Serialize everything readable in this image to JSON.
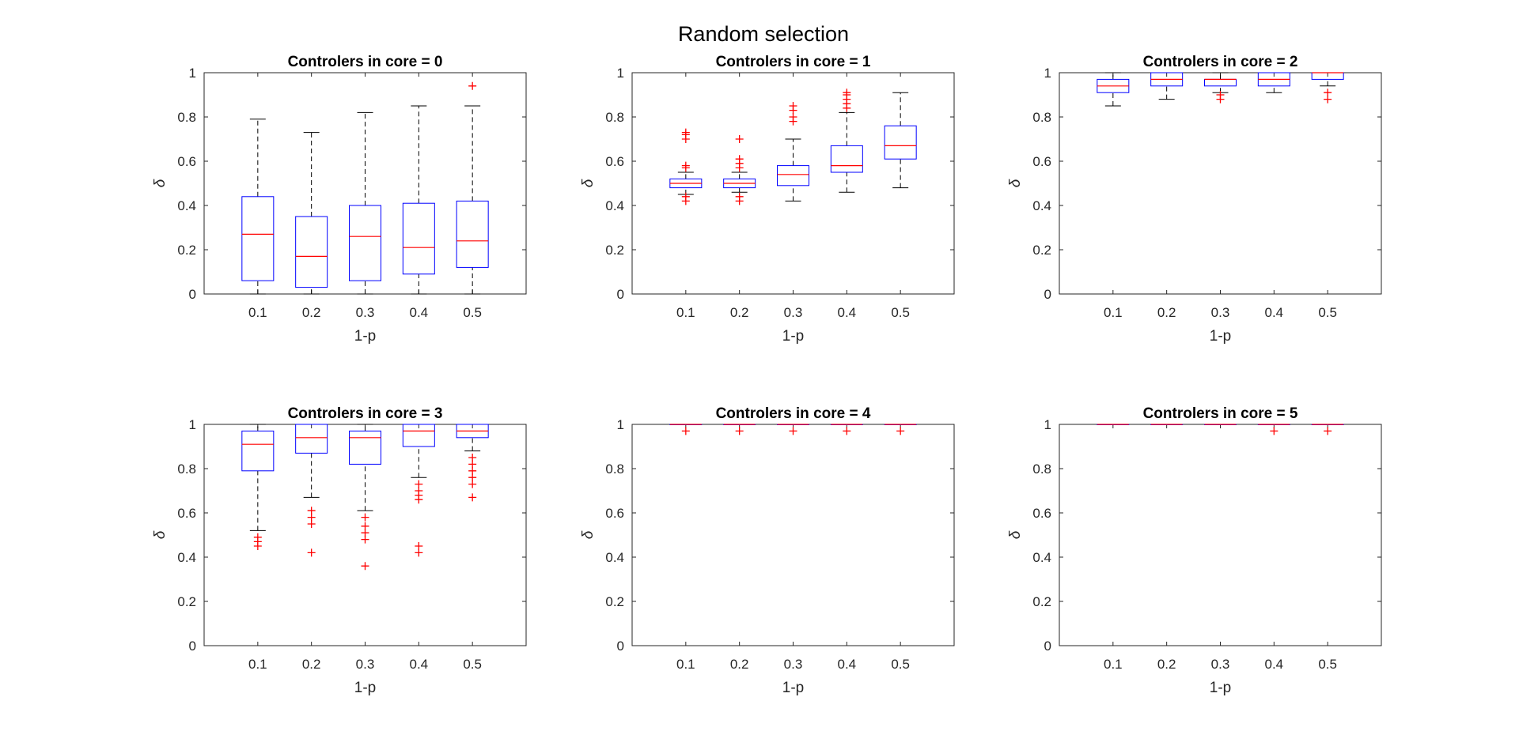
{
  "figure_title": "Random selection",
  "colors": {
    "box": "#0000ff",
    "median": "#ff0000",
    "whisker": "#000000",
    "outlier": "#ff0000",
    "axes": "#262626"
  },
  "chart_data": [
    {
      "type": "box",
      "title": "Controlers in core = 0",
      "xlabel": "1-p",
      "ylabel": "δ",
      "categories": [
        "0.1",
        "0.2",
        "0.3",
        "0.4",
        "0.5"
      ],
      "ylim": [
        0,
        1
      ],
      "yticks": [
        "0",
        "0.2",
        "0.4",
        "0.6",
        "0.8",
        "1"
      ],
      "boxes": [
        {
          "q1": 0.06,
          "median": 0.27,
          "q3": 0.44,
          "lw": 0.0,
          "uw": 0.79,
          "outliers": []
        },
        {
          "q1": 0.03,
          "median": 0.17,
          "q3": 0.35,
          "lw": 0.0,
          "uw": 0.73,
          "outliers": []
        },
        {
          "q1": 0.06,
          "median": 0.26,
          "q3": 0.4,
          "lw": 0.0,
          "uw": 0.82,
          "outliers": []
        },
        {
          "q1": 0.09,
          "median": 0.21,
          "q3": 0.41,
          "lw": 0.0,
          "uw": 0.85,
          "outliers": []
        },
        {
          "q1": 0.12,
          "median": 0.24,
          "q3": 0.42,
          "lw": 0.0,
          "uw": 0.85,
          "outliers": [
            0.94
          ]
        }
      ]
    },
    {
      "type": "box",
      "title": "Controlers in core = 1",
      "xlabel": "1-p",
      "ylabel": "δ",
      "categories": [
        "0.1",
        "0.2",
        "0.3",
        "0.4",
        "0.5"
      ],
      "ylim": [
        0,
        1
      ],
      "yticks": [
        "0",
        "0.2",
        "0.4",
        "0.6",
        "0.8",
        "1"
      ],
      "boxes": [
        {
          "q1": 0.48,
          "median": 0.5,
          "q3": 0.52,
          "lw": 0.45,
          "uw": 0.55,
          "outliers": [
            0.42,
            0.44,
            0.57,
            0.58,
            0.7,
            0.72,
            0.73
          ]
        },
        {
          "q1": 0.48,
          "median": 0.5,
          "q3": 0.52,
          "lw": 0.46,
          "uw": 0.55,
          "outliers": [
            0.42,
            0.44,
            0.57,
            0.59,
            0.61,
            0.7
          ]
        },
        {
          "q1": 0.49,
          "median": 0.54,
          "q3": 0.58,
          "lw": 0.42,
          "uw": 0.7,
          "outliers": [
            0.78,
            0.8,
            0.83,
            0.85
          ]
        },
        {
          "q1": 0.55,
          "median": 0.58,
          "q3": 0.67,
          "lw": 0.46,
          "uw": 0.82,
          "outliers": [
            0.84,
            0.86,
            0.88,
            0.9,
            0.91
          ]
        },
        {
          "q1": 0.61,
          "median": 0.67,
          "q3": 0.76,
          "lw": 0.48,
          "uw": 0.91,
          "outliers": []
        }
      ]
    },
    {
      "type": "box",
      "title": "Controlers in core = 2",
      "xlabel": "1-p",
      "ylabel": "δ",
      "categories": [
        "0.1",
        "0.2",
        "0.3",
        "0.4",
        "0.5"
      ],
      "ylim": [
        0,
        1
      ],
      "yticks": [
        "0",
        "0.2",
        "0.4",
        "0.6",
        "0.8",
        "1"
      ],
      "boxes": [
        {
          "q1": 0.91,
          "median": 0.94,
          "q3": 0.97,
          "lw": 0.85,
          "uw": 1.0,
          "outliers": []
        },
        {
          "q1": 0.94,
          "median": 0.97,
          "q3": 1.0,
          "lw": 0.88,
          "uw": 1.0,
          "outliers": []
        },
        {
          "q1": 0.94,
          "median": 0.97,
          "q3": 0.97,
          "lw": 0.91,
          "uw": 1.0,
          "outliers": [
            0.88,
            0.9
          ]
        },
        {
          "q1": 0.94,
          "median": 0.97,
          "q3": 1.0,
          "lw": 0.91,
          "uw": 1.0,
          "outliers": []
        },
        {
          "q1": 0.97,
          "median": 1.0,
          "q3": 1.0,
          "lw": 0.94,
          "uw": 1.0,
          "outliers": [
            0.88,
            0.91
          ]
        }
      ]
    },
    {
      "type": "box",
      "title": "Controlers in core = 3",
      "xlabel": "1-p",
      "ylabel": "δ",
      "categories": [
        "0.1",
        "0.2",
        "0.3",
        "0.4",
        "0.5"
      ],
      "ylim": [
        0,
        1
      ],
      "yticks": [
        "0",
        "0.2",
        "0.4",
        "0.6",
        "0.8",
        "1"
      ],
      "boxes": [
        {
          "q1": 0.79,
          "median": 0.91,
          "q3": 0.97,
          "lw": 0.52,
          "uw": 1.0,
          "outliers": [
            0.45,
            0.47,
            0.49
          ]
        },
        {
          "q1": 0.87,
          "median": 0.94,
          "q3": 1.0,
          "lw": 0.67,
          "uw": 1.0,
          "outliers": [
            0.42,
            0.55,
            0.58,
            0.61
          ]
        },
        {
          "q1": 0.82,
          "median": 0.94,
          "q3": 0.97,
          "lw": 0.61,
          "uw": 1.0,
          "outliers": [
            0.36,
            0.48,
            0.51,
            0.54,
            0.58
          ]
        },
        {
          "q1": 0.9,
          "median": 0.97,
          "q3": 1.0,
          "lw": 0.76,
          "uw": 1.0,
          "outliers": [
            0.42,
            0.45,
            0.66,
            0.68,
            0.7,
            0.73
          ]
        },
        {
          "q1": 0.94,
          "median": 0.97,
          "q3": 1.0,
          "lw": 0.88,
          "uw": 1.0,
          "outliers": [
            0.67,
            0.73,
            0.76,
            0.79,
            0.82,
            0.85
          ]
        }
      ]
    },
    {
      "type": "box",
      "title": "Controlers in core = 4",
      "xlabel": "1-p",
      "ylabel": "δ",
      "categories": [
        "0.1",
        "0.2",
        "0.3",
        "0.4",
        "0.5"
      ],
      "ylim": [
        0,
        1
      ],
      "yticks": [
        "0",
        "0.2",
        "0.4",
        "0.6",
        "0.8",
        "1"
      ],
      "boxes": [
        {
          "q1": 1.0,
          "median": 1.0,
          "q3": 1.0,
          "lw": 1.0,
          "uw": 1.0,
          "outliers": [
            0.97
          ]
        },
        {
          "q1": 1.0,
          "median": 1.0,
          "q3": 1.0,
          "lw": 1.0,
          "uw": 1.0,
          "outliers": [
            0.97
          ]
        },
        {
          "q1": 1.0,
          "median": 1.0,
          "q3": 1.0,
          "lw": 1.0,
          "uw": 1.0,
          "outliers": [
            0.97
          ]
        },
        {
          "q1": 1.0,
          "median": 1.0,
          "q3": 1.0,
          "lw": 1.0,
          "uw": 1.0,
          "outliers": [
            0.97
          ]
        },
        {
          "q1": 1.0,
          "median": 1.0,
          "q3": 1.0,
          "lw": 1.0,
          "uw": 1.0,
          "outliers": [
            0.97
          ]
        }
      ]
    },
    {
      "type": "box",
      "title": "Controlers in core = 5",
      "xlabel": "1-p",
      "ylabel": "δ",
      "categories": [
        "0.1",
        "0.2",
        "0.3",
        "0.4",
        "0.5"
      ],
      "ylim": [
        0,
        1
      ],
      "yticks": [
        "0",
        "0.2",
        "0.4",
        "0.6",
        "0.8",
        "1"
      ],
      "boxes": [
        {
          "q1": 1.0,
          "median": 1.0,
          "q3": 1.0,
          "lw": 1.0,
          "uw": 1.0,
          "outliers": []
        },
        {
          "q1": 1.0,
          "median": 1.0,
          "q3": 1.0,
          "lw": 1.0,
          "uw": 1.0,
          "outliers": []
        },
        {
          "q1": 1.0,
          "median": 1.0,
          "q3": 1.0,
          "lw": 1.0,
          "uw": 1.0,
          "outliers": []
        },
        {
          "q1": 1.0,
          "median": 1.0,
          "q3": 1.0,
          "lw": 1.0,
          "uw": 1.0,
          "outliers": [
            0.97
          ]
        },
        {
          "q1": 1.0,
          "median": 1.0,
          "q3": 1.0,
          "lw": 1.0,
          "uw": 1.0,
          "outliers": [
            0.97
          ]
        }
      ]
    }
  ]
}
